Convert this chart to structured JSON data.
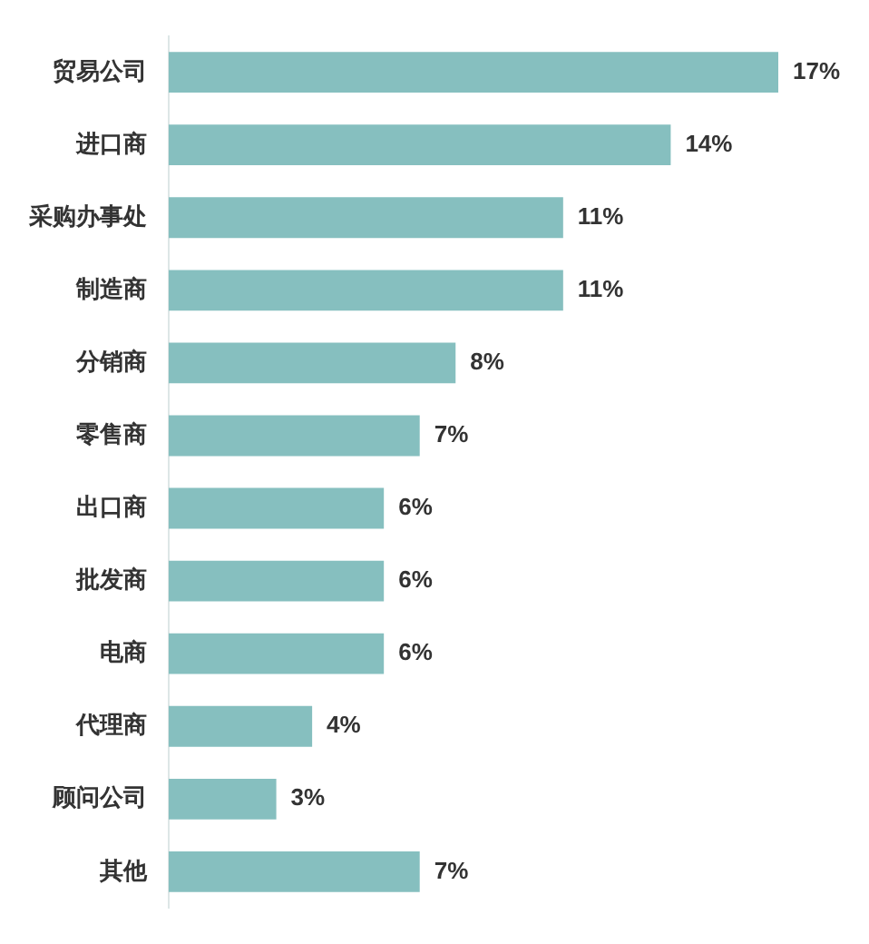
{
  "chart_data": {
    "type": "bar",
    "orientation": "horizontal",
    "categories": [
      "贸易公司",
      "进口商",
      "采购办事处",
      "制造商",
      "分销商",
      "零售商",
      "出口商",
      "批发商",
      "电商",
      "代理商",
      "顾问公司",
      "其他"
    ],
    "values": [
      17,
      14,
      11,
      11,
      8,
      7,
      6,
      6,
      6,
      4,
      3,
      7
    ],
    "value_labels": [
      "17%",
      "14%",
      "11%",
      "11%",
      "8%",
      "7%",
      "6%",
      "6%",
      "6%",
      "4%",
      "3%",
      "7%"
    ],
    "color": "#86bfbf"
  }
}
